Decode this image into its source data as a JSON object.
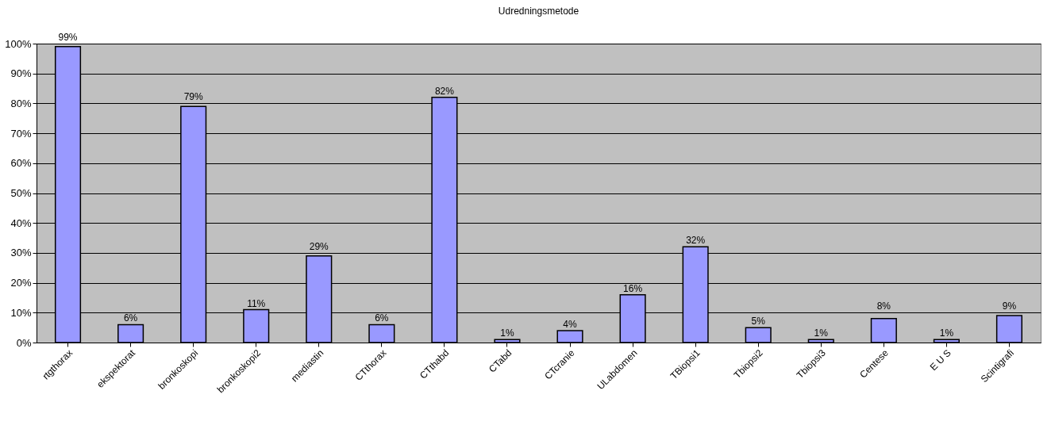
{
  "chart_data": {
    "type": "bar",
    "title": "Udredningsmetode",
    "categories": [
      "rtgthorax",
      "ekspektorat",
      "bronkoskopi",
      "bronkoskopi2",
      "mediastin",
      "CTthorax",
      "CTthabd",
      "CTabd",
      "CTcranie",
      "ULabdomen",
      "TBiopsi1",
      "Tbiopsi2",
      "Tbiopsi3",
      "Centese",
      "E U S",
      "Scintigrafi"
    ],
    "values": [
      99,
      6,
      79,
      11,
      29,
      6,
      82,
      1,
      4,
      16,
      32,
      5,
      1,
      8,
      1,
      9
    ],
    "value_labels": [
      "99%",
      "6%",
      "79%",
      "11%",
      "29%",
      "6%",
      "82%",
      "1%",
      "4%",
      "16%",
      "32%",
      "5%",
      "1%",
      "8%",
      "1%",
      "9%"
    ],
    "color": "#9999ff",
    "ylim": [
      0,
      100
    ],
    "yticks": [
      {
        "value": 0,
        "label": "0%"
      },
      {
        "value": 10,
        "label": "10%"
      },
      {
        "value": 20,
        "label": "20%"
      },
      {
        "value": 30,
        "label": "30%"
      },
      {
        "value": 40,
        "label": "40%"
      },
      {
        "value": 50,
        "label": "50%"
      },
      {
        "value": 60,
        "label": "60%"
      },
      {
        "value": 70,
        "label": "70%"
      },
      {
        "value": 80,
        "label": "80%"
      },
      {
        "value": 90,
        "label": "90%"
      },
      {
        "value": 100,
        "label": "100%"
      }
    ],
    "grid": "y"
  }
}
